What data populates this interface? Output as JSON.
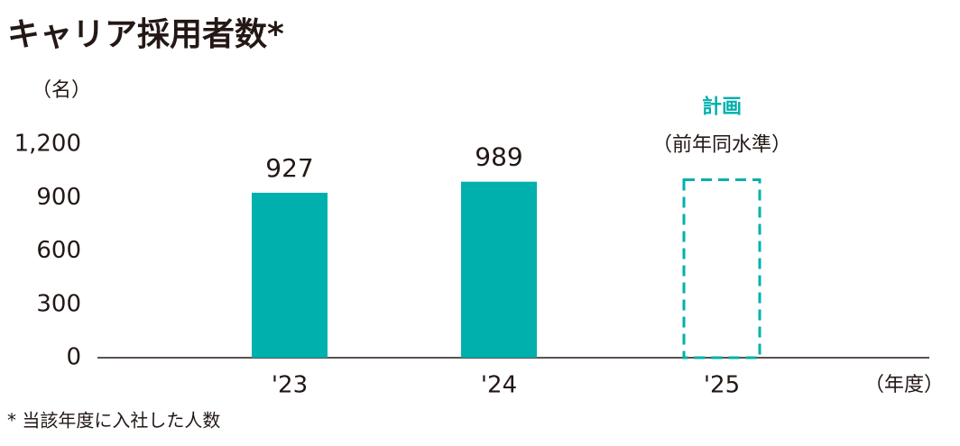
{
  "chart_data": {
    "type": "bar",
    "title": "キャリア採用者数*",
    "y_unit": "（名）",
    "x_unit": "（年度）",
    "footnote": "* 当該年度に入社した人数",
    "annotation": {
      "title": "計画",
      "text": "（前年同水準）"
    },
    "categories": [
      "'23",
      "'24",
      "'25"
    ],
    "values": [
      927,
      989,
      1000
    ],
    "value_labels": [
      "927",
      "989",
      null
    ],
    "dashed": [
      false,
      false,
      true
    ],
    "color": "#00b0ad",
    "ylim": [
      0,
      1200
    ],
    "yticks": [
      0,
      300,
      600,
      900,
      {
        "value": 1200,
        "label": "1,200"
      }
    ],
    "grid": false
  }
}
